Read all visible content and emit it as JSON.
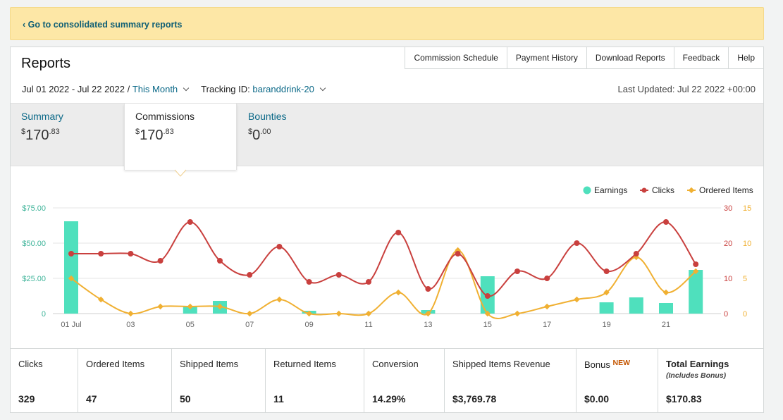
{
  "banner": {
    "link_text": "‹ Go to consolidated summary reports"
  },
  "header": {
    "title": "Reports",
    "links": [
      "Commission Schedule",
      "Payment History",
      "Download Reports",
      "Feedback",
      "Help"
    ]
  },
  "filters": {
    "date_range": "Jul 01 2022 - Jul 22 2022 /",
    "period": "This Month",
    "tracking_label": "Tracking ID:",
    "tracking_id": "baranddrink-20",
    "last_updated": "Last Updated: Jul 22 2022 +00:00"
  },
  "tabs": [
    {
      "label": "Summary",
      "dollars": "170",
      "cents": ".83",
      "currency": "$"
    },
    {
      "label": "Commissions",
      "dollars": "170",
      "cents": ".83",
      "currency": "$"
    },
    {
      "label": "Bounties",
      "dollars": "0",
      "cents": ".00",
      "currency": "$"
    }
  ],
  "colors": {
    "earnings": "#4fe0bd",
    "clicks": "#c9403e",
    "ordered": "#f0b032",
    "left_axis": "#3fb49a"
  },
  "chart_data": {
    "type": "bar",
    "legend": [
      "Earnings",
      "Clicks",
      "Ordered Items"
    ],
    "legend_position": "top-right",
    "categories": [
      "01 Jul",
      "02",
      "03",
      "04",
      "05",
      "06",
      "07",
      "08",
      "09",
      "10",
      "11",
      "12",
      "13",
      "14",
      "15",
      "16",
      "17",
      "18",
      "19",
      "20",
      "21",
      "22"
    ],
    "tick_labels": [
      "01 Jul",
      "",
      "03",
      "",
      "05",
      "",
      "07",
      "",
      "09",
      "",
      "11",
      "",
      "13",
      "",
      "15",
      "",
      "17",
      "",
      "19",
      "",
      "21",
      ""
    ],
    "y_left_ticks": [
      "0",
      "$25.00",
      "$50.00",
      "$75.00"
    ],
    "y_clicks_ticks": [
      "0",
      "10",
      "20",
      "30"
    ],
    "y_ordered_ticks": [
      "0",
      "5",
      "10",
      "15"
    ],
    "ylim_left": [
      0,
      75
    ],
    "ylim_clicks": [
      0,
      30
    ],
    "ylim_ordered": [
      0,
      15
    ],
    "series": [
      {
        "name": "Earnings",
        "type": "bar",
        "axis": "left",
        "values": [
          65.5,
          0,
          0,
          0,
          5.5,
          9,
          0,
          0,
          2,
          0,
          0,
          0,
          2.5,
          0,
          26.5,
          0,
          0,
          0,
          8,
          11.5,
          7.5,
          31
        ]
      },
      {
        "name": "Clicks",
        "type": "line",
        "axis": "clicks",
        "values": [
          17,
          17,
          17,
          15,
          26,
          15,
          11,
          19,
          9,
          11,
          9,
          23,
          7,
          17,
          5,
          12,
          10,
          20,
          12,
          17,
          26,
          14
        ]
      },
      {
        "name": "Ordered Items",
        "type": "line",
        "axis": "ordered",
        "values": [
          5,
          2,
          0,
          1,
          1,
          1,
          0,
          2,
          0,
          0,
          0,
          3,
          0,
          9,
          0,
          0,
          1,
          2,
          3,
          8,
          3,
          6
        ]
      }
    ]
  },
  "stats": [
    {
      "label": "Clicks",
      "value": "329"
    },
    {
      "label": "Ordered Items",
      "value": "47"
    },
    {
      "label": "Shipped Items",
      "value": "50"
    },
    {
      "label": "Returned Items",
      "value": "11"
    },
    {
      "label": "Conversion",
      "value": "14.29%"
    },
    {
      "label": "Shipped Items Revenue",
      "value": "$3,769.78"
    },
    {
      "label": "Bonus",
      "badge": "NEW",
      "value": "$0.00"
    },
    {
      "label": "Total Earnings",
      "sublabel": "(Includes Bonus)",
      "value": "$170.83"
    }
  ]
}
